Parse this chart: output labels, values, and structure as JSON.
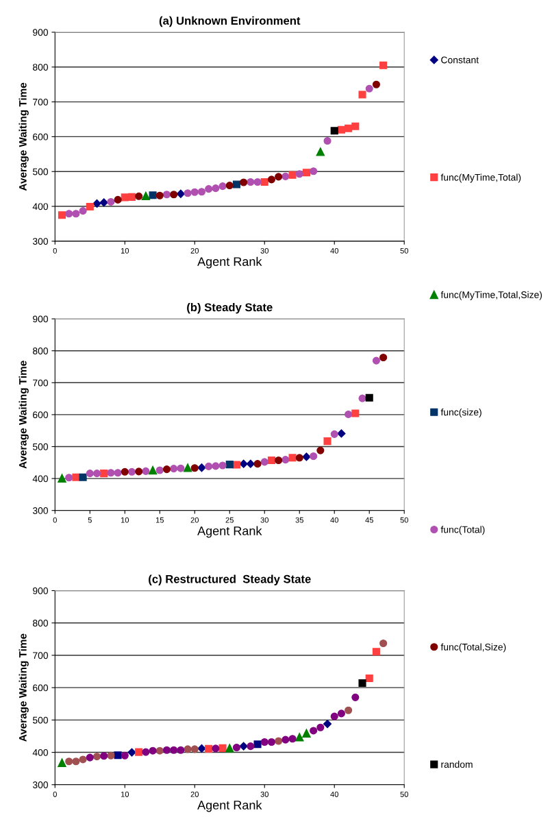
{
  "chart_data": [
    {
      "type": "scatter",
      "title": "(a) Unknown Environment",
      "xlabel": "Agent Rank",
      "ylabel": "Average Waiting Time",
      "xlim": [
        0,
        50
      ],
      "xticks": [
        0,
        10,
        20,
        30,
        40,
        50
      ],
      "ylim": [
        300,
        900
      ],
      "yticks": [
        300,
        400,
        500,
        600,
        700,
        800,
        900
      ],
      "grid": "y",
      "legend": "right",
      "series": [
        {
          "name": "Constant",
          "color": "#000080",
          "marker": "diamond",
          "x": [
            6,
            7,
            18
          ],
          "values": [
            408,
            411,
            436
          ]
        },
        {
          "name": "func(MyTime,Total)",
          "color": "#ff4040",
          "marker": "square",
          "x": [
            1,
            5,
            10,
            11,
            30,
            34,
            36,
            41,
            42,
            43,
            44,
            47
          ],
          "values": [
            375,
            399,
            426,
            427,
            470,
            490,
            497,
            620,
            624,
            630,
            721,
            805
          ]
        },
        {
          "name": "func(MyTime,Total,Size)",
          "color": "#008000",
          "marker": "triangle",
          "x": [
            13,
            38
          ],
          "values": [
            430,
            557
          ]
        },
        {
          "name": "func(size)",
          "color": "#003366",
          "marker": "square",
          "x": [
            14,
            26
          ],
          "values": [
            432,
            463
          ]
        },
        {
          "name": "func(Total)",
          "color": "#b050b0",
          "marker": "circle",
          "x": [
            2,
            3,
            4,
            8,
            16,
            19,
            20,
            21,
            22,
            23,
            24,
            28,
            29,
            33,
            35,
            37,
            39,
            45
          ],
          "values": [
            379,
            379,
            387,
            413,
            434,
            438,
            441,
            442,
            450,
            452,
            458,
            470,
            470,
            486,
            493,
            501,
            588,
            738
          ]
        },
        {
          "name": "func(Total,Size)",
          "color": "#800000",
          "marker": "circle",
          "x": [
            9,
            12,
            15,
            17,
            25,
            27,
            31,
            32,
            46
          ],
          "values": [
            419,
            429,
            431,
            434,
            460,
            469,
            477,
            485,
            750
          ]
        },
        {
          "name": "random",
          "color": "#000000",
          "marker": "square",
          "x": [
            40
          ],
          "values": [
            617
          ]
        }
      ]
    },
    {
      "type": "scatter",
      "title": "(b) Steady State",
      "xlabel": "Agent Rank",
      "ylabel": "Average Waiting Time",
      "xlim": [
        0,
        50
      ],
      "xticks": [
        0,
        5,
        10,
        15,
        20,
        25,
        30,
        35,
        40,
        45,
        50
      ],
      "ylim": [
        300,
        900
      ],
      "yticks": [
        300,
        400,
        500,
        600,
        700,
        800,
        900
      ],
      "grid": "y",
      "series": [
        {
          "color": "#000080",
          "marker": "diamond",
          "x": [
            21,
            27,
            28,
            36,
            41
          ],
          "values": [
            434,
            446,
            446,
            468,
            541
          ]
        },
        {
          "color": "#ff4040",
          "marker": "square",
          "x": [
            3,
            7,
            26,
            31,
            34,
            39,
            43
          ],
          "values": [
            404,
            416,
            443,
            457,
            465,
            517,
            604
          ]
        },
        {
          "color": "#008000",
          "marker": "triangle",
          "x": [
            1,
            14,
            19
          ],
          "values": [
            401,
            426,
            434
          ]
        },
        {
          "color": "#003366",
          "marker": "square",
          "x": [
            4,
            25
          ],
          "values": [
            404,
            444
          ]
        },
        {
          "color": "#b050b0",
          "marker": "circle",
          "x": [
            2,
            5,
            6,
            8,
            9,
            11,
            13,
            15,
            17,
            18,
            22,
            23,
            24,
            30,
            33,
            37,
            40,
            42,
            44,
            46
          ],
          "values": [
            403,
            416,
            416,
            418,
            418,
            421,
            423,
            426,
            431,
            432,
            438,
            439,
            441,
            452,
            459,
            470,
            539,
            601,
            651,
            769
          ]
        },
        {
          "color": "#800000",
          "marker": "circle",
          "x": [
            10,
            12,
            16,
            20,
            29,
            32,
            35,
            38,
            47
          ],
          "values": [
            421,
            422,
            429,
            433,
            446,
            457,
            465,
            488,
            779
          ]
        },
        {
          "color": "#000000",
          "marker": "square",
          "x": [
            45
          ],
          "values": [
            653
          ]
        }
      ]
    },
    {
      "type": "scatter",
      "title": "(c) Restructured  Steady State",
      "xlabel": "Agent Rank",
      "ylabel": "Average Waiting Time",
      "xlim": [
        0,
        50
      ],
      "xticks": [
        0,
        10,
        20,
        30,
        40,
        50
      ],
      "ylim": [
        300,
        900
      ],
      "yticks": [
        300,
        400,
        500,
        600,
        700,
        800,
        900
      ],
      "grid": "y",
      "series": [
        {
          "color": "#000080",
          "marker": "diamond",
          "x": [
            11,
            21,
            27,
            39
          ],
          "values": [
            400,
            412,
            419,
            488
          ]
        },
        {
          "color": "#ff4040",
          "marker": "square",
          "x": [
            12,
            22,
            24,
            45,
            46
          ],
          "values": [
            401,
            411,
            413,
            629,
            711
          ]
        },
        {
          "color": "#008000",
          "marker": "triangle",
          "x": [
            1,
            25,
            35,
            36
          ],
          "values": [
            368,
            413,
            447,
            459
          ]
        },
        {
          "color": "#000080",
          "marker": "square",
          "x": [
            9,
            29
          ],
          "values": [
            391,
            425
          ]
        },
        {
          "color": "#a05050",
          "marker": "circle",
          "x": [
            2,
            3,
            4,
            6,
            8,
            15,
            19,
            20,
            32,
            42,
            47
          ],
          "values": [
            372,
            372,
            378,
            387,
            390,
            405,
            410,
            410,
            435,
            530,
            737
          ]
        },
        {
          "color": "#800080",
          "marker": "circle",
          "x": [
            5,
            7,
            10,
            13,
            14,
            16,
            17,
            18,
            23,
            26,
            28,
            30,
            31,
            33,
            34,
            37,
            38,
            40,
            41,
            43
          ],
          "values": [
            384,
            389,
            390,
            401,
            405,
            407,
            407,
            407,
            412,
            415,
            419,
            432,
            432,
            439,
            442,
            467,
            477,
            511,
            520,
            570
          ]
        },
        {
          "color": "#000000",
          "marker": "square",
          "x": [
            44
          ],
          "values": [
            614
          ]
        }
      ]
    }
  ]
}
